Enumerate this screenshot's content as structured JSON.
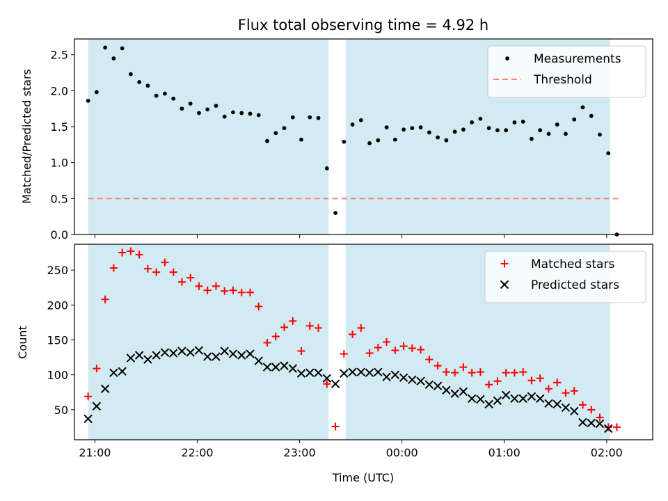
{
  "chart_data": [
    {
      "type": "scatter",
      "title": "Flux total observing time = 4.92 h",
      "ylabel": "Matched/Predicted stars",
      "xlabel": "",
      "ylim": [
        0,
        2.72
      ],
      "yticks": [
        0.0,
        0.5,
        1.0,
        1.5,
        2.0,
        2.5
      ],
      "ytick_labels": [
        "0.0",
        "0.5",
        "1.0",
        "1.5",
        "2.0",
        "2.5"
      ],
      "xlim": [
        "20:48",
        "02:27"
      ],
      "xticks": [
        "21:00",
        "22:00",
        "23:00",
        "00:00",
        "01:00",
        "02:00"
      ],
      "grid": false,
      "legend_position": "top-right",
      "shaded_intervals": [
        [
          "20:56",
          "23:17"
        ],
        [
          "23:27",
          "02:02"
        ]
      ],
      "shade_color": "#add8e6",
      "series": [
        {
          "name": "Measurements",
          "marker": "dot",
          "color": "#000000",
          "x": [
            "20:56",
            "21:01",
            "21:06",
            "21:11",
            "21:16",
            "21:21",
            "21:26",
            "21:31",
            "21:36",
            "21:41",
            "21:46",
            "21:51",
            "21:56",
            "22:01",
            "22:06",
            "22:11",
            "22:16",
            "22:21",
            "22:26",
            "22:31",
            "22:36",
            "22:41",
            "22:46",
            "22:51",
            "22:56",
            "23:01",
            "23:06",
            "23:11",
            "23:16",
            "23:21",
            "23:26",
            "23:31",
            "23:36",
            "23:41",
            "23:46",
            "23:51",
            "23:56",
            "00:01",
            "00:06",
            "00:11",
            "00:16",
            "00:21",
            "00:26",
            "00:31",
            "00:36",
            "00:41",
            "00:46",
            "00:51",
            "00:56",
            "01:01",
            "01:06",
            "01:11",
            "01:16",
            "01:21",
            "01:26",
            "01:31",
            "01:36",
            "01:41",
            "01:46",
            "01:51",
            "01:56",
            "02:01",
            "02:06"
          ],
          "y": [
            1.86,
            1.98,
            2.6,
            2.45,
            2.59,
            2.23,
            2.12,
            2.07,
            1.93,
            1.96,
            1.89,
            1.75,
            1.82,
            1.69,
            1.74,
            1.79,
            1.64,
            1.7,
            1.69,
            1.68,
            1.66,
            1.3,
            1.41,
            1.48,
            1.63,
            1.32,
            1.63,
            1.62,
            0.92,
            0.3,
            1.29,
            1.53,
            1.59,
            1.27,
            1.31,
            1.49,
            1.32,
            1.46,
            1.48,
            1.49,
            1.42,
            1.35,
            1.31,
            1.43,
            1.46,
            1.56,
            1.61,
            1.48,
            1.45,
            1.45,
            1.56,
            1.57,
            1.33,
            1.45,
            1.4,
            1.53,
            1.4,
            1.6,
            1.77,
            1.65,
            1.39,
            1.13,
            0.0
          ]
        },
        {
          "name": "Threshold",
          "marker": "dashed-line",
          "color": "#ff7f7f",
          "x": [
            "20:56",
            "02:08"
          ],
          "y": [
            0.5,
            0.5
          ]
        }
      ]
    },
    {
      "type": "scatter",
      "title": "",
      "ylabel": "Count",
      "xlabel": "Time (UTC)",
      "ylim": [
        7,
        287
      ],
      "yticks": [
        50,
        100,
        150,
        200,
        250
      ],
      "ytick_labels": [
        "50",
        "100",
        "150",
        "200",
        "250"
      ],
      "xlim": [
        "20:48",
        "02:27"
      ],
      "xticks": [
        "21:00",
        "22:00",
        "23:00",
        "00:00",
        "01:00",
        "02:00"
      ],
      "xtick_labels": [
        "21:00",
        "22:00",
        "23:00",
        "00:00",
        "01:00",
        "02:00"
      ],
      "grid": false,
      "legend_position": "top-right",
      "shaded_intervals": [
        [
          "20:56",
          "23:17"
        ],
        [
          "23:27",
          "02:02"
        ]
      ],
      "shade_color": "#add8e6",
      "series": [
        {
          "name": "Matched stars",
          "marker": "plus",
          "color": "#ff0000",
          "x": [
            "20:56",
            "21:01",
            "21:06",
            "21:11",
            "21:16",
            "21:21",
            "21:26",
            "21:31",
            "21:36",
            "21:41",
            "21:46",
            "21:51",
            "21:56",
            "22:01",
            "22:06",
            "22:11",
            "22:16",
            "22:21",
            "22:26",
            "22:31",
            "22:36",
            "22:41",
            "22:46",
            "22:51",
            "22:56",
            "23:01",
            "23:06",
            "23:11",
            "23:16",
            "23:21",
            "23:26",
            "23:31",
            "23:36",
            "23:41",
            "23:46",
            "23:51",
            "23:56",
            "00:01",
            "00:06",
            "00:11",
            "00:16",
            "00:21",
            "00:26",
            "00:31",
            "00:36",
            "00:41",
            "00:46",
            "00:51",
            "00:56",
            "01:01",
            "01:06",
            "01:11",
            "01:16",
            "01:21",
            "01:26",
            "01:31",
            "01:36",
            "01:41",
            "01:46",
            "01:51",
            "01:56",
            "02:01",
            "02:06"
          ],
          "y": [
            69,
            109,
            208,
            253,
            275,
            277,
            272,
            252,
            247,
            261,
            247,
            233,
            239,
            227,
            221,
            227,
            220,
            221,
            218,
            218,
            198,
            146,
            155,
            168,
            177,
            134,
            170,
            167,
            87,
            26,
            130,
            158,
            167,
            131,
            139,
            147,
            135,
            141,
            138,
            136,
            122,
            113,
            104,
            103,
            111,
            103,
            104,
            86,
            91,
            103,
            103,
            104,
            92,
            95,
            80,
            89,
            74,
            77,
            57,
            50,
            39,
            25,
            25
          ]
        },
        {
          "name": "Predicted stars",
          "marker": "x",
          "color": "#000000",
          "x": [
            "20:56",
            "21:01",
            "21:06",
            "21:11",
            "21:16",
            "21:21",
            "21:26",
            "21:31",
            "21:36",
            "21:41",
            "21:46",
            "21:51",
            "21:56",
            "22:01",
            "22:06",
            "22:11",
            "22:16",
            "22:21",
            "22:26",
            "22:31",
            "22:36",
            "22:41",
            "22:46",
            "22:51",
            "22:56",
            "23:01",
            "23:06",
            "23:11",
            "23:16",
            "23:21",
            "23:26",
            "23:31",
            "23:36",
            "23:41",
            "23:46",
            "23:51",
            "23:56",
            "00:01",
            "00:06",
            "00:11",
            "00:16",
            "00:21",
            "00:26",
            "00:31",
            "00:36",
            "00:41",
            "00:46",
            "00:51",
            "00:56",
            "01:01",
            "01:06",
            "01:11",
            "01:16",
            "01:21",
            "01:26",
            "01:31",
            "01:36",
            "01:41",
            "01:46",
            "01:51",
            "01:56",
            "02:01"
          ],
          "y": [
            37,
            55,
            80,
            103,
            105,
            124,
            128,
            122,
            128,
            132,
            131,
            134,
            132,
            135,
            126,
            126,
            134,
            130,
            128,
            130,
            120,
            111,
            111,
            113,
            109,
            102,
            103,
            103,
            95,
            87,
            102,
            104,
            104,
            103,
            104,
            97,
            100,
            96,
            93,
            91,
            86,
            84,
            78,
            73,
            76,
            66,
            65,
            58,
            63,
            71,
            66,
            66,
            69,
            66,
            59,
            58,
            53,
            48,
            32,
            31,
            30,
            23
          ]
        }
      ]
    }
  ]
}
